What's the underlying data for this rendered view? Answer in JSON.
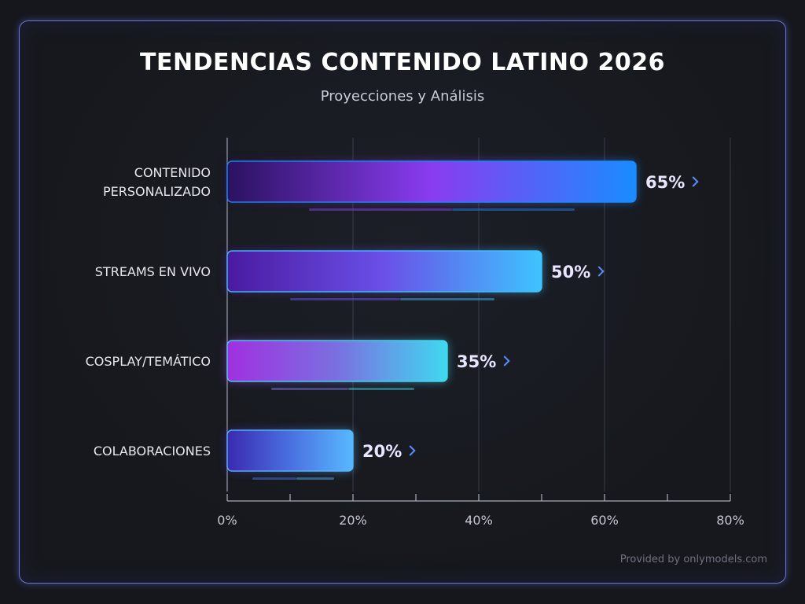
{
  "chart_data": {
    "type": "bar",
    "orientation": "horizontal",
    "title": "TENDENCIAS CONTENIDO LATINO 2026",
    "subtitle": "Proyecciones y Análisis",
    "categories": [
      [
        "CONTENIDO",
        "PERSONALIZADO"
      ],
      [
        "STREAMS EN VIVO"
      ],
      [
        "COSPLAY/TEMÁTICO"
      ],
      [
        "COLABORACIONES"
      ]
    ],
    "values": [
      65,
      50,
      35,
      20
    ],
    "value_labels": [
      "65%",
      "50%",
      "35%",
      "20%"
    ],
    "xlim": [
      0,
      80
    ],
    "xticks": [
      0,
      20,
      40,
      60,
      80
    ],
    "xtick_labels": [
      "0%",
      "20%",
      "40%",
      "60%",
      "80%"
    ],
    "grid": "vertical",
    "bar_gradients": [
      [
        "#2a1260",
        "#8a3cf0",
        "#1a8cff"
      ],
      [
        "#4a1aa0",
        "#6a50e8",
        "#3ec4ff"
      ],
      [
        "#a030e0",
        "#7a70e0",
        "#40d8f0"
      ],
      [
        "#3a2ab0",
        "#4a70e0",
        "#58b8ff"
      ]
    ]
  },
  "credit": "Provided by onlymodels.com",
  "colors": {
    "background": "#15171c",
    "frame": "#6a74d8",
    "chevron": "#5a8cff"
  }
}
